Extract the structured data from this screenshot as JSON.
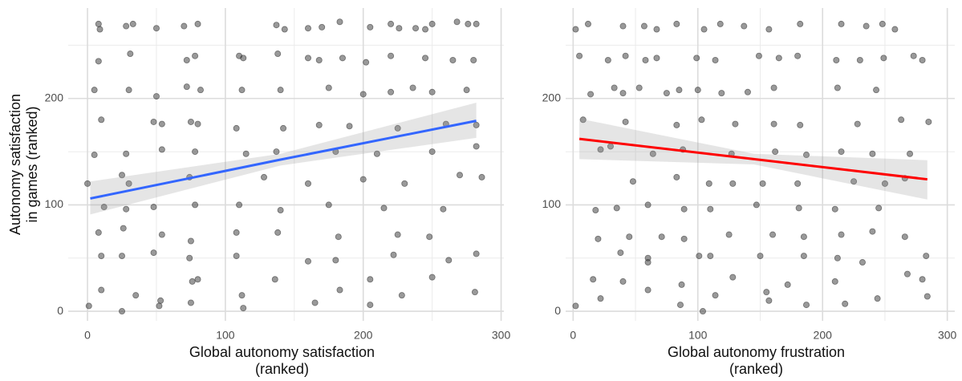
{
  "chart_data": [
    {
      "type": "scatter",
      "x_label": [
        "Global autonomy satisfaction",
        "(ranked)"
      ],
      "y_label": [
        "Autonomy satisfaction",
        "in games (ranked)"
      ],
      "xlim": [
        -14,
        302
      ],
      "ylim": [
        -9,
        285
      ],
      "xticks": [
        0,
        100,
        200,
        300
      ],
      "yticks": [
        0,
        100,
        200
      ],
      "minor_xticks": [
        50,
        150,
        250
      ],
      "minor_yticks": [
        50,
        150,
        250
      ],
      "grid": true,
      "point_color": "#333333",
      "x": [
        8,
        9,
        28,
        33,
        50,
        70,
        80,
        137,
        143,
        160,
        170,
        183,
        205,
        220,
        226,
        238,
        245,
        250,
        268,
        276,
        282,
        8,
        31,
        72,
        78,
        110,
        113,
        138,
        160,
        168,
        185,
        202,
        220,
        245,
        265,
        280,
        5,
        30,
        50,
        72,
        82,
        112,
        140,
        175,
        200,
        220,
        236,
        250,
        275,
        10,
        48,
        54,
        75,
        80,
        108,
        142,
        168,
        190,
        225,
        260,
        282,
        5,
        28,
        54,
        78,
        115,
        137,
        180,
        210,
        250,
        282,
        0,
        25,
        30,
        74,
        128,
        160,
        200,
        230,
        270,
        286,
        12,
        28,
        48,
        78,
        110,
        140,
        175,
        215,
        258,
        8,
        26,
        54,
        75,
        108,
        138,
        182,
        225,
        248,
        10,
        25,
        48,
        74,
        108,
        160,
        180,
        222,
        262,
        282,
        10,
        35,
        53,
        76,
        80,
        112,
        136,
        165,
        183,
        205,
        250,
        281,
        1,
        25,
        52,
        75,
        113,
        205,
        228
      ],
      "y": [
        270,
        265,
        268,
        270,
        266,
        268,
        270,
        269,
        265,
        266,
        267,
        272,
        267,
        270,
        266,
        266,
        265,
        270,
        272,
        270,
        270,
        235,
        242,
        236,
        240,
        240,
        238,
        242,
        238,
        236,
        238,
        234,
        240,
        238,
        236,
        236,
        208,
        208,
        202,
        211,
        208,
        208,
        208,
        210,
        204,
        206,
        210,
        206,
        208,
        180,
        178,
        176,
        178,
        176,
        172,
        172,
        175,
        174,
        172,
        176,
        175,
        147,
        148,
        152,
        150,
        148,
        150,
        150,
        148,
        150,
        155,
        120,
        128,
        120,
        126,
        126,
        120,
        124,
        120,
        128,
        126,
        98,
        96,
        98,
        100,
        100,
        95,
        100,
        97,
        96,
        74,
        78,
        72,
        66,
        74,
        74,
        70,
        72,
        70,
        52,
        52,
        55,
        50,
        52,
        47,
        48,
        53,
        48,
        54,
        20,
        15,
        10,
        28,
        30,
        15,
        30,
        8,
        20,
        30,
        32,
        18,
        5,
        0,
        5,
        8,
        3,
        6,
        15
      ],
      "fit": {
        "color": "#3366ff",
        "x": [
          2,
          140,
          282
        ],
        "y": [
          106,
          142.5,
          179
        ],
        "lower": [
          91,
          137,
          163
        ],
        "upper": [
          122,
          148,
          196
        ]
      }
    },
    {
      "type": "scatter",
      "x_label": [
        "Global autonomy frustration",
        "(ranked)"
      ],
      "xlim": [
        -6,
        306
      ],
      "ylim": [
        -9,
        285
      ],
      "xticks": [
        0,
        100,
        200,
        300
      ],
      "yticks": [
        0,
        100,
        200
      ],
      "minor_xticks": [
        50,
        150,
        250
      ],
      "minor_yticks": [
        50,
        150,
        250
      ],
      "grid": true,
      "point_color": "#333333",
      "x": [
        2,
        12,
        40,
        57,
        67,
        83,
        105,
        118,
        137,
        157,
        182,
        215,
        235,
        248,
        258,
        5,
        28,
        42,
        58,
        67,
        99,
        114,
        149,
        165,
        180,
        211,
        230,
        249,
        273,
        280,
        14,
        33,
        40,
        53,
        75,
        85,
        100,
        119,
        140,
        161,
        212,
        243,
        8,
        42,
        83,
        103,
        130,
        161,
        182,
        228,
        263,
        285,
        22,
        30,
        64,
        88,
        127,
        162,
        187,
        215,
        240,
        270,
        48,
        83,
        109,
        128,
        152,
        180,
        225,
        250,
        266,
        18,
        35,
        60,
        89,
        110,
        147,
        181,
        210,
        245,
        20,
        45,
        71,
        89,
        125,
        160,
        185,
        215,
        240,
        266,
        38,
        60,
        60,
        101,
        110,
        150,
        185,
        212,
        232,
        283,
        16,
        40,
        60,
        87,
        128,
        155,
        172,
        210,
        268,
        280,
        2,
        22,
        86,
        104,
        114,
        157,
        187,
        218,
        244,
        284
      ],
      "y": [
        265,
        270,
        268,
        268,
        265,
        270,
        265,
        270,
        268,
        265,
        270,
        270,
        268,
        270,
        265,
        240,
        236,
        240,
        236,
        238,
        238,
        236,
        240,
        238,
        240,
        236,
        236,
        238,
        240,
        236,
        204,
        210,
        205,
        210,
        205,
        208,
        208,
        205,
        206,
        210,
        210,
        208,
        180,
        178,
        175,
        180,
        176,
        176,
        175,
        176,
        180,
        178,
        152,
        155,
        148,
        152,
        148,
        150,
        147,
        150,
        148,
        148,
        122,
        126,
        120,
        120,
        120,
        120,
        122,
        120,
        125,
        95,
        97,
        100,
        96,
        96,
        100,
        97,
        96,
        97,
        68,
        70,
        70,
        68,
        72,
        72,
        70,
        72,
        75,
        70,
        55,
        50,
        46,
        52,
        52,
        52,
        52,
        50,
        46,
        52,
        30,
        28,
        20,
        25,
        32,
        18,
        25,
        28,
        35,
        30,
        5,
        12,
        6,
        0,
        15,
        10,
        6,
        7,
        12,
        14
      ],
      "fit": {
        "color": "#ff0000",
        "x": [
          5,
          145,
          284
        ],
        "y": [
          162,
          143,
          124
        ],
        "lower": [
          143,
          138,
          105
        ],
        "upper": [
          181,
          148,
          142
        ]
      }
    }
  ]
}
